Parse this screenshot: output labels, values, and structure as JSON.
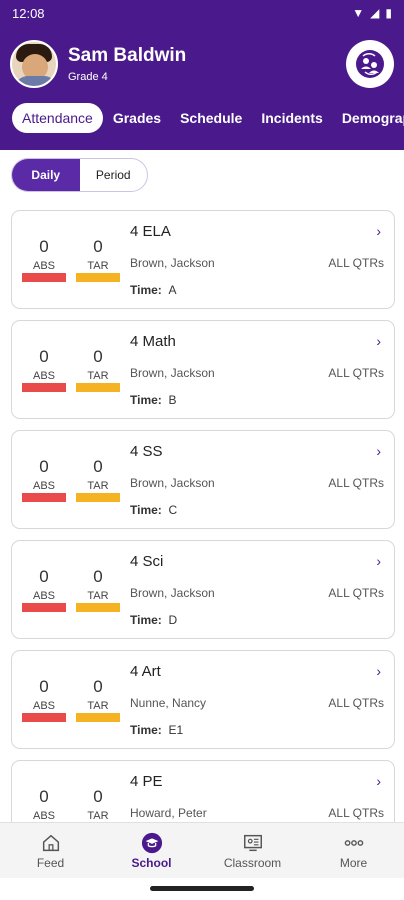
{
  "status_bar": {
    "time": "12:08"
  },
  "profile": {
    "name": "Sam Baldwin",
    "grade": "Grade 4"
  },
  "tabs": [
    {
      "label": "Attendance",
      "active": true
    },
    {
      "label": "Grades"
    },
    {
      "label": "Schedule"
    },
    {
      "label": "Incidents"
    },
    {
      "label": "Demographics"
    }
  ],
  "toggle": {
    "daily": "Daily",
    "period": "Period",
    "selected": "Daily"
  },
  "labels": {
    "abs": "ABS",
    "tar": "TAR",
    "time": "Time:",
    "qtrs": "ALL QTRs"
  },
  "courses": [
    {
      "name": "4 ELA",
      "teacher": "Brown, Jackson",
      "time": "A",
      "abs": "0",
      "tar": "0"
    },
    {
      "name": "4 Math",
      "teacher": "Brown, Jackson",
      "time": "B",
      "abs": "0",
      "tar": "0"
    },
    {
      "name": "4 SS",
      "teacher": "Brown, Jackson",
      "time": "C",
      "abs": "0",
      "tar": "0"
    },
    {
      "name": "4 Sci",
      "teacher": "Brown, Jackson",
      "time": "D",
      "abs": "0",
      "tar": "0"
    },
    {
      "name": "4 Art",
      "teacher": "Nunne, Nancy",
      "time": "E1",
      "abs": "0",
      "tar": "0"
    },
    {
      "name": "4 PE",
      "teacher": "Howard, Peter",
      "time": "",
      "abs": "0",
      "tar": "0"
    }
  ],
  "bottom_nav": [
    {
      "label": "Feed",
      "icon": "home-icon"
    },
    {
      "label": "School",
      "icon": "graduation-cap-icon",
      "active": true
    },
    {
      "label": "Classroom",
      "icon": "classroom-icon"
    },
    {
      "label": "More",
      "icon": "more-dots-icon"
    }
  ],
  "colors": {
    "brand": "#4a1a8c",
    "abs_bar": "#e94a4a",
    "tar_bar": "#f5b324"
  }
}
